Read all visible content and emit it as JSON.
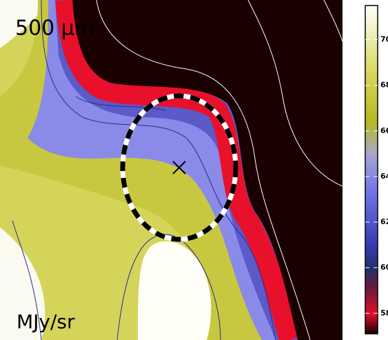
{
  "chart_data": {
    "type": "image",
    "title": "500 μm",
    "colorbar_label": "MJy/sr",
    "clim": [
      57.1,
      71.5
    ],
    "colorbar_ticks": [
      58,
      60,
      62,
      64,
      66,
      68,
      70
    ]
  }
}
